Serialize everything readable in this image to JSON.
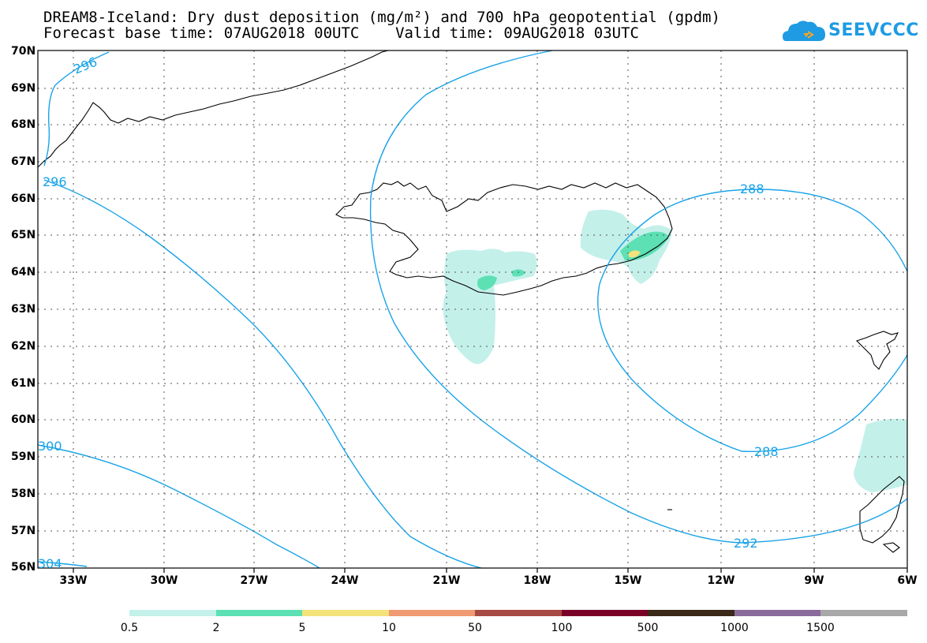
{
  "title_line1": "DREAM8-Iceland: Dry dust deposition (mg/m²) and 700 hPa geopotential (gpdm)",
  "title_line2": "Forecast base time: 07AUG2018 00UTC    Valid time: 09AUG2018 03UTC",
  "logo_text": "SEEVCCC",
  "lat_labels": [
    "70N",
    "69N",
    "68N",
    "67N",
    "66N",
    "65N",
    "64N",
    "63N",
    "62N",
    "61N",
    "60N",
    "59N",
    "58N",
    "57N",
    "56N"
  ],
  "lon_labels": [
    "33W",
    "30W",
    "27W",
    "24W",
    "21W",
    "18W",
    "15W",
    "12W",
    "9W",
    "6W"
  ],
  "contour_labels": [
    "296",
    "296",
    "300",
    "304",
    "288",
    "288",
    "292"
  ],
  "colorbar": {
    "colors": [
      "#c4f0ea",
      "#5ce0b4",
      "#f4e27a",
      "#f09a72",
      "#a84a44",
      "#7a0028",
      "#3a2818",
      "#8a6b9c",
      "#a8a8a8"
    ],
    "labels": [
      "0.5",
      "2",
      "5",
      "10",
      "50",
      "100",
      "500",
      "1000",
      "1500"
    ]
  },
  "colors": {
    "contour": "#1aa3e8",
    "coast": "#000000",
    "logo": "#1e9be3"
  }
}
